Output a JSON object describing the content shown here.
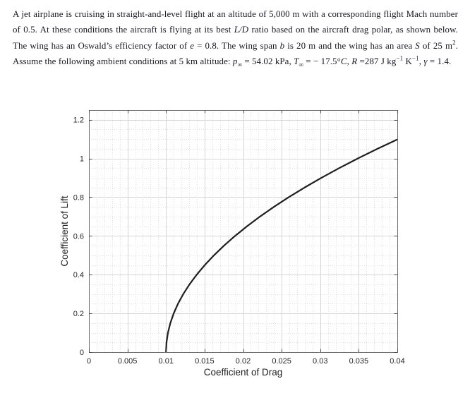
{
  "colors": {
    "text": "#171722",
    "curve": "#1f1f1f",
    "grid_major": "#d6d6d6",
    "grid_minor": "#e1e1e1",
    "axis_box": "#6e6e6e",
    "tick": "#4d4d4d",
    "tick_label": "#262626"
  },
  "problem": {
    "segments": [
      {
        "t": "A jet airplane is cruising in straight-and-level flight at an altitude of 5,000 m with a corresponding flight Mach number of 0.5.  At these conditions the aircraft is flying at its best ",
        "s": "n"
      },
      {
        "t": "L/D",
        "s": "i"
      },
      {
        "t": " ratio based on the aircraft drag polar, as shown below. The wing has an Oswald’s efficiency factor of ",
        "s": "n"
      },
      {
        "t": "e",
        "s": "i"
      },
      {
        "t": " = 0.8.  The wing span ",
        "s": "n"
      },
      {
        "t": "b",
        "s": "i"
      },
      {
        "t": " is 20 m and the wing has an area ",
        "s": "n"
      },
      {
        "t": "S",
        "s": "i"
      },
      {
        "t": " of 25 m",
        "s": "n"
      },
      {
        "t": "2",
        "s": "sup"
      },
      {
        "t": ".  Assume the following ambient conditions at 5 km altitude:  ",
        "s": "n"
      },
      {
        "t": "p",
        "s": "i"
      },
      {
        "t": "∞",
        "s": "sub"
      },
      {
        "t": " = 54.02 kPa, ",
        "s": "n"
      },
      {
        "t": "T",
        "s": "i"
      },
      {
        "t": "∞",
        "s": "sub"
      },
      {
        "t": " = − 17.5°",
        "s": "n"
      },
      {
        "t": "C",
        "s": "i"
      },
      {
        "t": ", ",
        "s": "n"
      },
      {
        "t": "R",
        "s": "i"
      },
      {
        "t": " =287 J kg",
        "s": "n"
      },
      {
        "t": "−1",
        "s": "sup"
      },
      {
        "t": " K",
        "s": "n"
      },
      {
        "t": "−1",
        "s": "sup"
      },
      {
        "t": ", ",
        "s": "n"
      },
      {
        "t": "γ",
        "s": "i"
      },
      {
        "t": " = 1.4.",
        "s": "n"
      }
    ]
  },
  "chart_data": {
    "type": "line",
    "title": "",
    "xlabel": "Coefficient of Drag",
    "ylabel": "Coefficient of Lift",
    "xlim": [
      0,
      0.04
    ],
    "ylim": [
      0,
      1.25
    ],
    "xticks": [
      0,
      0.005,
      0.01,
      0.015,
      0.02,
      0.025,
      0.03,
      0.035,
      0.04
    ],
    "yticks": [
      0,
      0.2,
      0.4,
      0.6,
      0.8,
      1,
      1.2
    ],
    "xtick_labels": [
      "0",
      "0.005",
      "0.01",
      "0.015",
      "0.02",
      "0.025",
      "0.03",
      "0.035",
      "0.04"
    ],
    "ytick_labels": [
      "0",
      "0.2",
      "0.4",
      "0.6",
      "0.8",
      "1",
      "1.2"
    ],
    "grid": true,
    "minor_grid": true,
    "x_minor_step": 0.001,
    "y_minor_step": 0.05,
    "legend": "none",
    "box": true,
    "tick_direction": "in",
    "series": [
      {
        "name": "aircraft-drag-polar",
        "points": [
          [
            0.01,
            0.0
          ],
          [
            0.010062,
            0.05
          ],
          [
            0.010249,
            0.1
          ],
          [
            0.01056,
            0.15
          ],
          [
            0.010995,
            0.2
          ],
          [
            0.011554,
            0.25
          ],
          [
            0.012238,
            0.3
          ],
          [
            0.013046,
            0.35
          ],
          [
            0.013979,
            0.4
          ],
          [
            0.015036,
            0.45
          ],
          [
            0.016217,
            0.5
          ],
          [
            0.017522,
            0.55
          ],
          [
            0.018952,
            0.6
          ],
          [
            0.020507,
            0.65
          ],
          [
            0.022185,
            0.7
          ],
          [
            0.023988,
            0.75
          ],
          [
            0.025916,
            0.8
          ],
          [
            0.027967,
            0.85
          ],
          [
            0.030143,
            0.9
          ],
          [
            0.032443,
            0.95
          ],
          [
            0.034868,
            1.0
          ],
          [
            0.037417,
            1.05
          ],
          [
            0.04,
            1.0983
          ]
        ]
      }
    ]
  }
}
